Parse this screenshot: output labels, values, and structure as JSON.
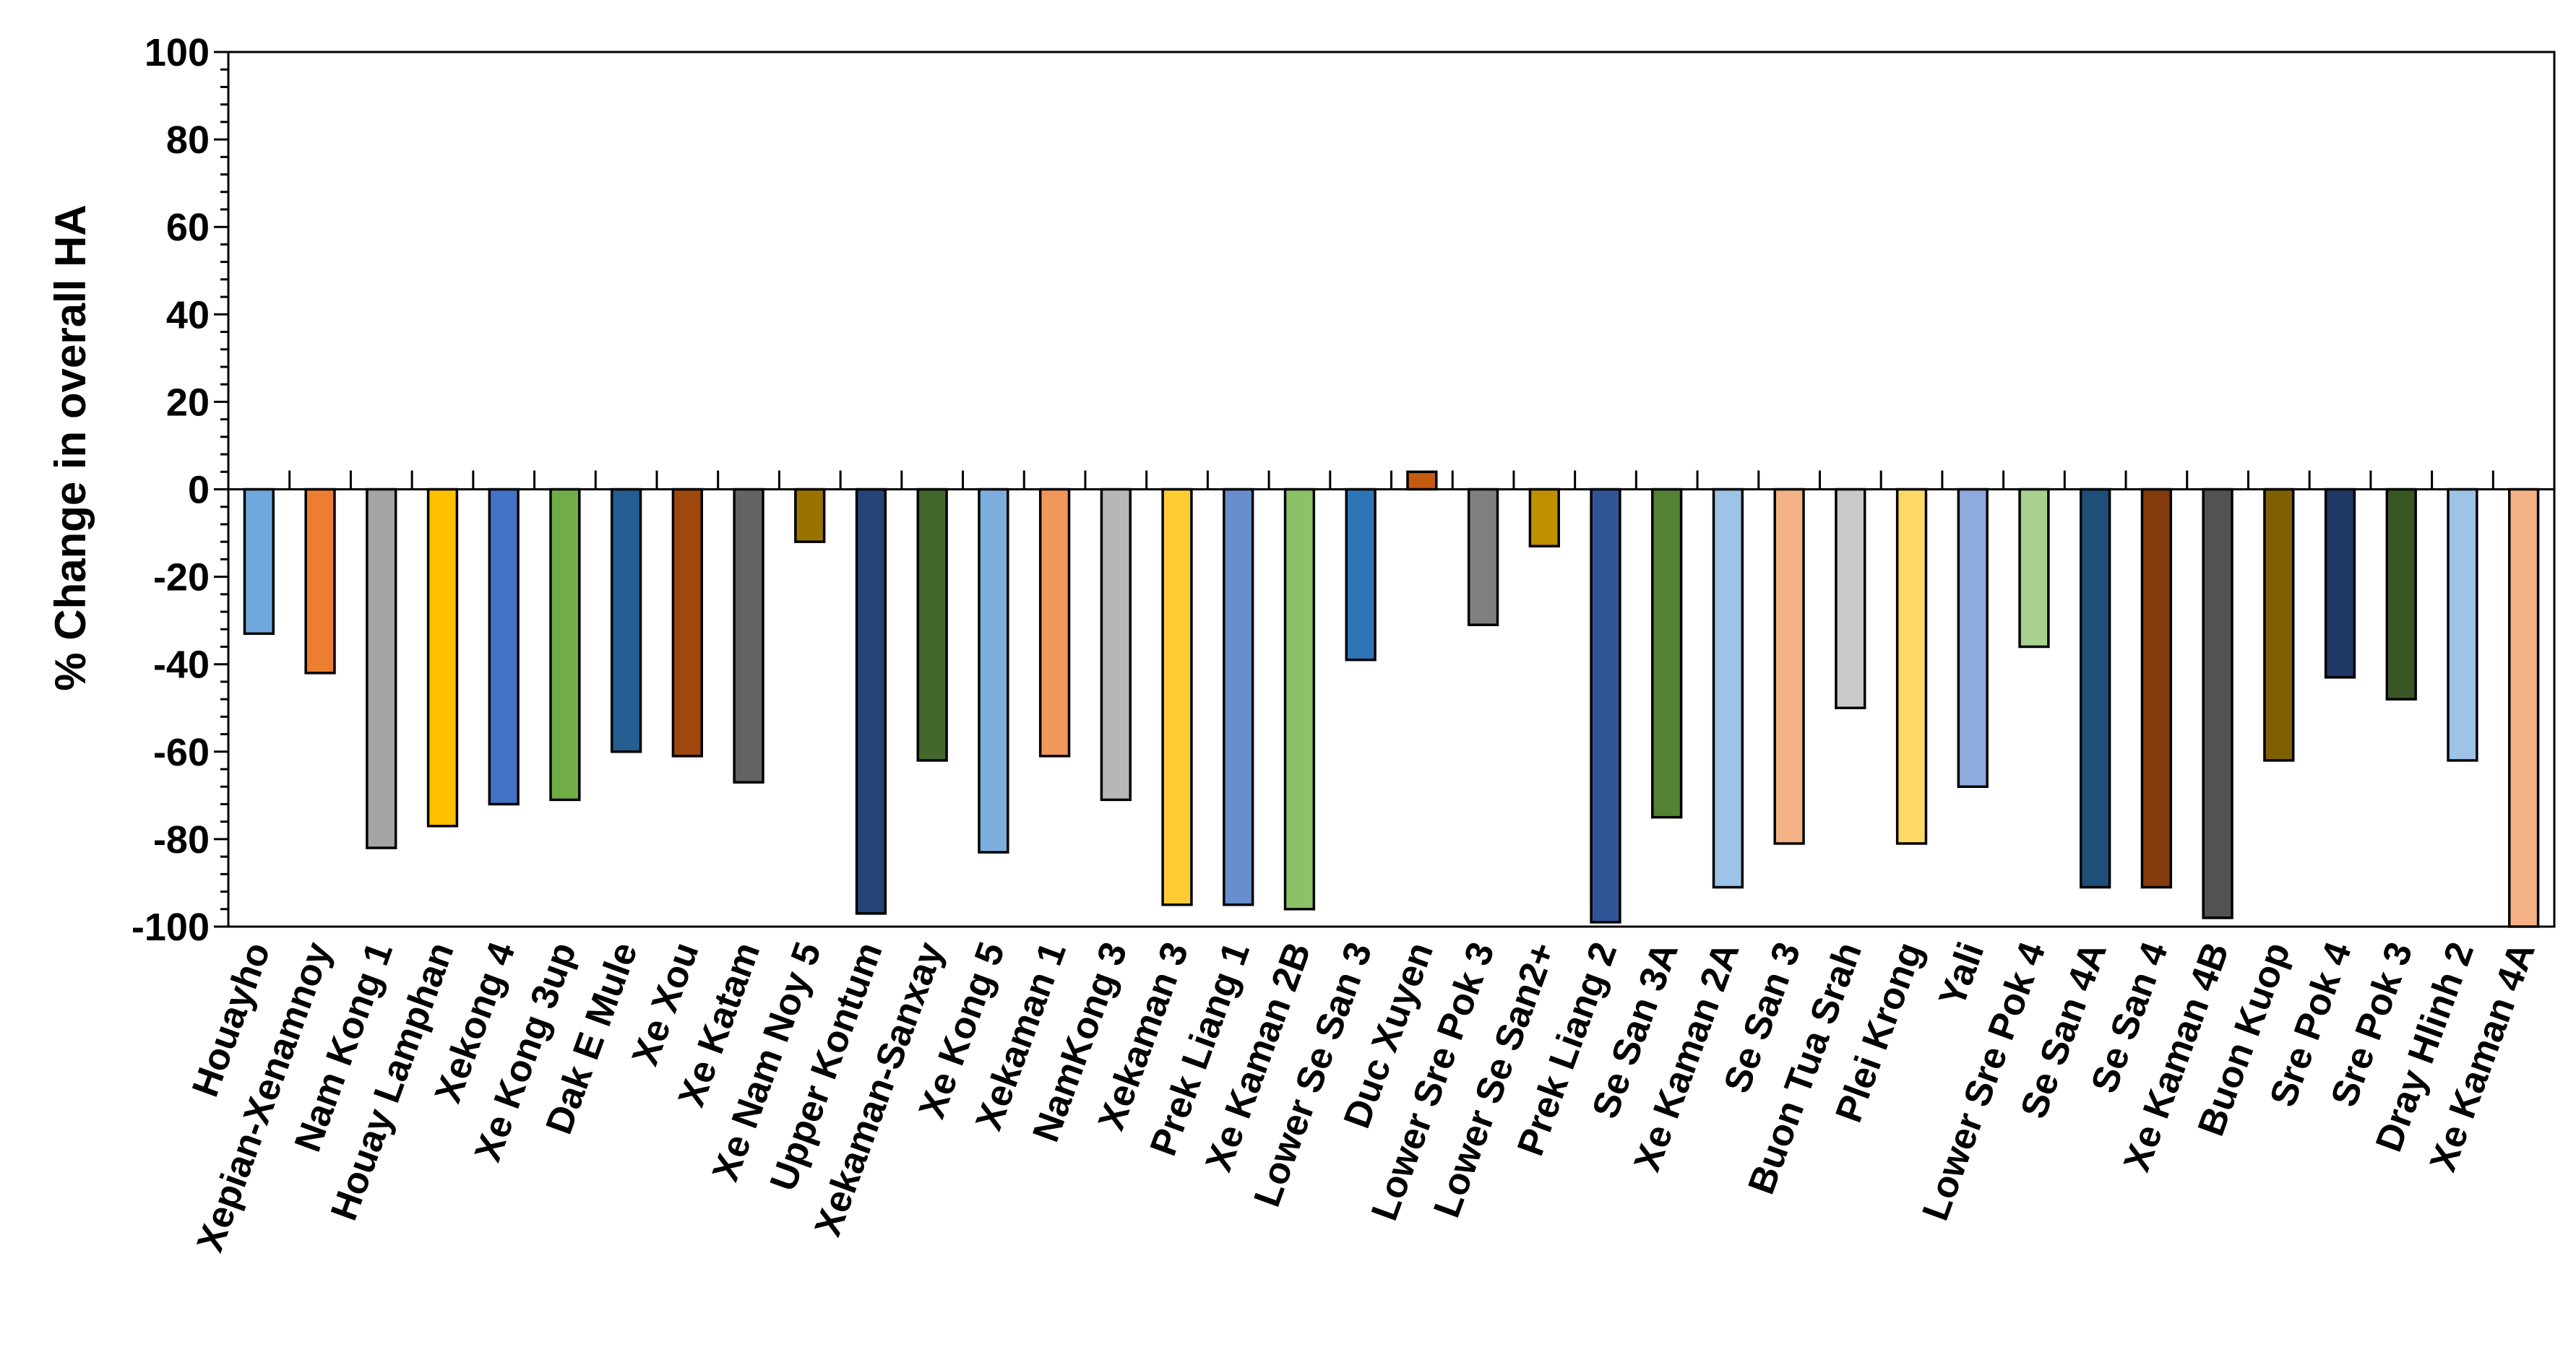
{
  "chart_data": {
    "type": "bar",
    "title": "",
    "xlabel": "",
    "ylabel": "% Change in overall HA",
    "ylim": [
      -100,
      100
    ],
    "yticks": [
      100,
      80,
      60,
      40,
      20,
      0,
      -20,
      -40,
      -60,
      -80,
      -100
    ],
    "grid": false,
    "legend": "none",
    "categories": [
      "Houayho",
      "Xepian-Xenamnoy",
      "Nam Kong 1",
      "Houay Lamphan",
      "Xekong 4",
      "Xe Kong 3up",
      "Dak E Mule",
      "Xe Xou",
      "Xe Katam",
      "Xe Nam Noy 5",
      "Upper Kontum",
      "Xekaman-Sanxay",
      "Xe Kong 5",
      "Xekaman 1",
      "NamKong 3",
      "Xekaman 3",
      "Prek Liang 1",
      "Xe Kaman 2B",
      "Lower Se San 3",
      "Duc Xuyen",
      "Lower Sre Pok 3",
      "Lower Se San2+",
      "Prek Liang 2",
      "Se San 3A",
      "Xe Kaman 2A",
      "Se San 3",
      "Buon Tua Srah",
      "Plei Krong",
      "Yali",
      "Lower Sre Pok 4",
      "Se San 4A",
      "Se San 4",
      "Xe Kaman 4B",
      "Buon Kuop",
      "Sre Pok 4",
      "Sre Pok 3",
      "Dray Hlinh 2",
      "Xe Kaman 4A"
    ],
    "values": [
      -33,
      -42,
      -82,
      -77,
      -72,
      -71,
      -60,
      -61,
      -67,
      -12,
      -97,
      -62,
      -83,
      -61,
      -71,
      -95,
      -95,
      -96,
      -39,
      4,
      -31,
      -13,
      -99,
      -75,
      -91,
      -81,
      -50,
      -81,
      -68,
      -36,
      -91,
      -91,
      -98,
      -62,
      -43,
      -48,
      -62,
      -100
    ],
    "colors": [
      "#6fa8dc",
      "#ed7d31",
      "#a5a5a5",
      "#ffc000",
      "#4472c4",
      "#70ad47",
      "#255e91",
      "#9e480e",
      "#636363",
      "#997300",
      "#264478",
      "#43682b",
      "#7cafdd",
      "#f1975a",
      "#b7b7b7",
      "#ffcd33",
      "#698ed0",
      "#8cc168",
      "#2e75b6",
      "#c55a11",
      "#7f7f7f",
      "#bf9000",
      "#2f5597",
      "#548235",
      "#9dc3e6",
      "#f4b183",
      "#c9c9c9",
      "#ffd966",
      "#8faadc",
      "#a9d18e",
      "#1f4e79",
      "#843c0c",
      "#525252",
      "#7f6000",
      "#203864",
      "#375623",
      "#9dc3e6",
      "#f4b183"
    ]
  }
}
